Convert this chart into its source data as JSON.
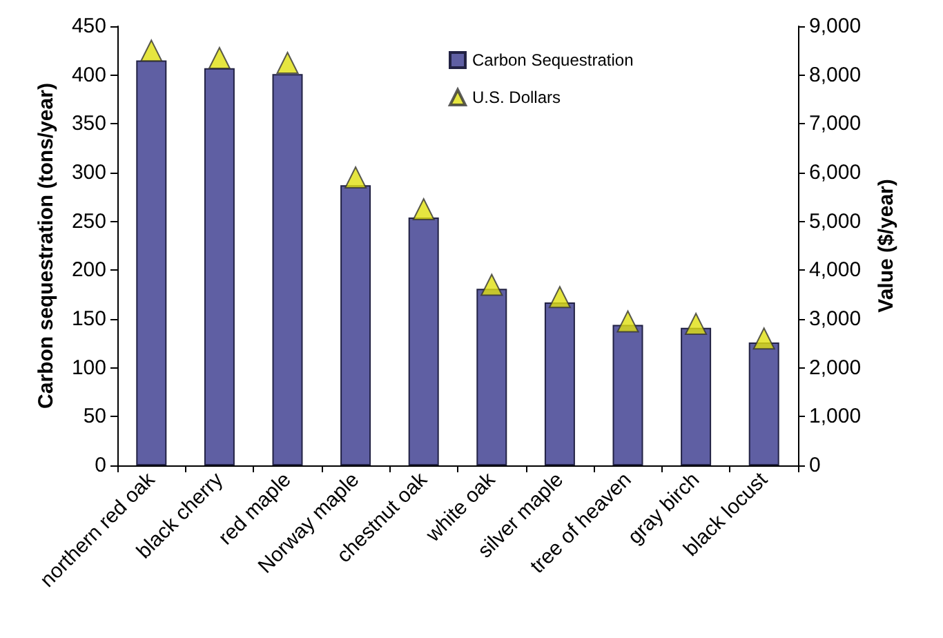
{
  "chart_data": {
    "type": "bar",
    "ylabel": "Carbon sequestration (tons/year)",
    "y2label": "Value ($/year)",
    "categories": [
      "northern red oak",
      "black cherry",
      "red maple",
      "Norway maple",
      "chestnut oak",
      "white oak",
      "silver maple",
      "tree of heaven",
      "gray birch",
      "black locust"
    ],
    "series": [
      {
        "name": "Carbon Sequestration",
        "color": "#5f5fa3",
        "values": [
          415,
          407,
          401,
          287,
          254,
          181,
          167,
          144,
          141,
          126
        ]
      },
      {
        "name": "U.S. Dollars",
        "type": "scatter",
        "axis": "y2",
        "marker": "triangle",
        "color": "#e0e010",
        "values": [
          8500,
          8350,
          8250,
          5900,
          5250,
          3700,
          3450,
          2950,
          2900,
          2600
        ]
      }
    ],
    "ylim": [
      0,
      450
    ],
    "yticks": [
      0,
      50,
      100,
      150,
      200,
      250,
      300,
      350,
      400,
      450
    ],
    "y2lim": [
      0,
      9000
    ],
    "y2ticks": [
      0,
      {
        "value": 1000,
        "label": "1,000"
      },
      {
        "value": 2000,
        "label": "2,000"
      },
      {
        "value": 3000,
        "label": "3,000"
      },
      {
        "value": 4000,
        "label": "4,000"
      },
      {
        "value": 5000,
        "label": "5,000"
      },
      {
        "value": 6000,
        "label": "6,000"
      },
      {
        "value": 7000,
        "label": "7,000"
      },
      {
        "value": 8000,
        "label": "8,000"
      },
      {
        "value": 9000,
        "label": "9,000"
      }
    ],
    "grid": false,
    "legend": "top right"
  }
}
